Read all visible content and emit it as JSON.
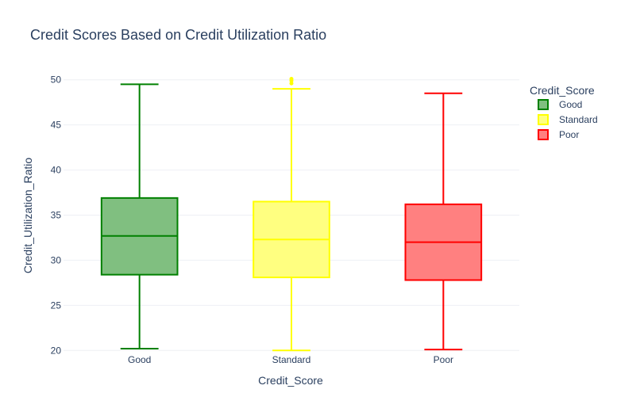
{
  "chart_data": {
    "type": "box",
    "title": "Credit Scores Based on Credit Utilization Ratio",
    "xlabel": "Credit_Score",
    "ylabel": "Credit_Utilization_Ratio",
    "ylim": [
      19.5,
      50.5
    ],
    "yticks": [
      20,
      25,
      30,
      35,
      40,
      45,
      50
    ],
    "grid": true,
    "legend": {
      "title": "Credit_Score",
      "position": "top-right"
    },
    "categories": [
      "Good",
      "Standard",
      "Poor"
    ],
    "series": [
      {
        "name": "Good",
        "color": "#008000",
        "fill": "#80bf80",
        "min": 20.2,
        "q1": 28.4,
        "median": 32.7,
        "q3": 36.9,
        "max": 49.5,
        "outliers": []
      },
      {
        "name": "Standard",
        "color": "#ffff00",
        "fill": "#ffff80",
        "min": 20.0,
        "q1": 28.1,
        "median": 32.3,
        "q3": 36.5,
        "max": 49.0,
        "outliers": [
          49.6,
          49.9,
          50.1
        ]
      },
      {
        "name": "Poor",
        "color": "#ff0000",
        "fill": "#ff8080",
        "min": 20.1,
        "q1": 27.8,
        "median": 32.0,
        "q3": 36.2,
        "max": 48.5,
        "outliers": []
      }
    ]
  }
}
